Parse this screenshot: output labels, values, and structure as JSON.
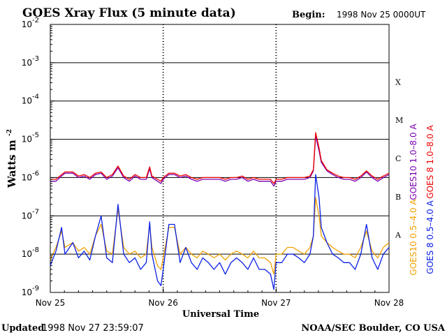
{
  "chart_data": {
    "type": "line",
    "title": "GOES Xray Flux (5 minute data)",
    "begin_label": "Begin:",
    "begin_value": "1998 Nov 25 0000UT",
    "ylabel": "Watts m",
    "ylabel_sup": "-2",
    "xlabel": "Universal Time",
    "y_scale": "log",
    "ylim": [
      1e-09,
      0.01
    ],
    "y_ticks": [
      {
        "base": "10",
        "exp": "-2",
        "value": 0.01
      },
      {
        "base": "10",
        "exp": "-3",
        "value": 0.001
      },
      {
        "base": "10",
        "exp": "-4",
        "value": 0.0001
      },
      {
        "base": "10",
        "exp": "-5",
        "value": 1e-05
      },
      {
        "base": "10",
        "exp": "-6",
        "value": 1e-06
      },
      {
        "base": "10",
        "exp": "-7",
        "value": 1e-07
      },
      {
        "base": "10",
        "exp": "-8",
        "value": 1e-08
      },
      {
        "base": "10",
        "exp": "-9",
        "value": 1e-09
      }
    ],
    "x_unit": "days since 1998 Nov 25 00:00 UT",
    "xlim": [
      0,
      3
    ],
    "x_ticks": [
      {
        "label": "Nov 25",
        "value": 0
      },
      {
        "label": "Nov 26",
        "value": 1
      },
      {
        "label": "Nov 27",
        "value": 2
      },
      {
        "label": "Nov 28",
        "value": 3
      }
    ],
    "flare_classes": [
      {
        "label": "X",
        "value": 0.000316
      },
      {
        "label": "M",
        "value": 3.16e-05
      },
      {
        "label": "C",
        "value": 3.16e-06
      },
      {
        "label": "B",
        "value": 3.16e-07
      },
      {
        "label": "A",
        "value": 3.16e-08
      }
    ],
    "grid": "horizontal at each decade",
    "legend_placement": "right, rotated",
    "series": [
      {
        "name": "GOES10 1.0–8.0 A",
        "color": "#7a00b0",
        "x": [
          0,
          0.05,
          0.1,
          0.13,
          0.2,
          0.25,
          0.3,
          0.35,
          0.4,
          0.45,
          0.5,
          0.55,
          0.6,
          0.65,
          0.7,
          0.75,
          0.8,
          0.85,
          0.88,
          0.9,
          0.95,
          0.98,
          1.0,
          1.05,
          1.1,
          1.15,
          1.2,
          1.25,
          1.3,
          1.35,
          1.4,
          1.45,
          1.5,
          1.55,
          1.6,
          1.65,
          1.7,
          1.75,
          1.8,
          1.85,
          1.9,
          1.95,
          1.98,
          2.0,
          2.05,
          2.1,
          2.15,
          2.2,
          2.25,
          2.3,
          2.33,
          2.35,
          2.38,
          2.4,
          2.45,
          2.5,
          2.55,
          2.6,
          2.65,
          2.7,
          2.75,
          2.8,
          2.85,
          2.9,
          2.95,
          3.0
        ],
        "y": [
          8e-07,
          8e-07,
          1.1e-06,
          1.3e-06,
          1.3e-06,
          1e-06,
          1.1e-06,
          9e-07,
          1.2e-06,
          1.3e-06,
          9e-07,
          1.1e-06,
          1.8e-06,
          1e-06,
          8e-07,
          1.1e-06,
          9e-07,
          9e-07,
          1.7e-06,
          1e-06,
          8e-07,
          7e-07,
          9e-07,
          1.2e-06,
          1.2e-06,
          1e-06,
          1.1e-06,
          9e-07,
          8e-07,
          9e-07,
          9e-07,
          9e-07,
          9e-07,
          8e-07,
          9e-07,
          9e-07,
          1e-06,
          8e-07,
          9e-07,
          8e-07,
          8e-07,
          8e-07,
          6e-07,
          8e-07,
          8e-07,
          9e-07,
          9e-07,
          9e-07,
          9e-07,
          1e-06,
          1.5e-06,
          1.2e-05,
          5e-06,
          2.5e-06,
          1.5e-06,
          1.2e-06,
          1e-06,
          9e-07,
          9e-07,
          8e-07,
          1e-06,
          1.4e-06,
          1e-06,
          8e-07,
          1e-06,
          1.2e-06
        ]
      },
      {
        "name": "GOES 8 1.0–8.0 A",
        "color": "#ee0000",
        "x": [
          0,
          0.05,
          0.1,
          0.13,
          0.2,
          0.25,
          0.3,
          0.35,
          0.4,
          0.45,
          0.5,
          0.55,
          0.6,
          0.65,
          0.7,
          0.75,
          0.8,
          0.85,
          0.88,
          0.9,
          0.95,
          0.98,
          1.0,
          1.05,
          1.1,
          1.15,
          1.2,
          1.25,
          1.3,
          1.35,
          1.4,
          1.45,
          1.5,
          1.55,
          1.6,
          1.65,
          1.7,
          1.75,
          1.8,
          1.85,
          1.9,
          1.95,
          1.98,
          2.0,
          2.05,
          2.1,
          2.15,
          2.2,
          2.25,
          2.3,
          2.33,
          2.35,
          2.38,
          2.4,
          2.45,
          2.5,
          2.55,
          2.6,
          2.65,
          2.7,
          2.75,
          2.8,
          2.85,
          2.9,
          2.95,
          3.0
        ],
        "y": [
          9e-07,
          9e-07,
          1.2e-06,
          1.4e-06,
          1.4e-06,
          1.1e-06,
          1.2e-06,
          1e-06,
          1.3e-06,
          1.4e-06,
          1e-06,
          1.2e-06,
          2e-06,
          1.1e-06,
          9e-07,
          1.2e-06,
          1e-06,
          1e-06,
          1.9e-06,
          1.1e-06,
          9e-07,
          8e-07,
          1e-06,
          1.3e-06,
          1.3e-06,
          1.1e-06,
          1.2e-06,
          1e-06,
          9e-07,
          1e-06,
          1e-06,
          1e-06,
          1e-06,
          9e-07,
          1e-06,
          1e-06,
          1.1e-06,
          9e-07,
          1e-06,
          9e-07,
          9e-07,
          9e-07,
          7e-07,
          9e-07,
          9e-07,
          1e-06,
          1e-06,
          1e-06,
          1e-06,
          1.1e-06,
          1.6e-06,
          1.5e-05,
          6e-06,
          2.8e-06,
          1.6e-06,
          1.3e-06,
          1.1e-06,
          1e-06,
          1e-06,
          9e-07,
          1.1e-06,
          1.5e-06,
          1.1e-06,
          9e-07,
          1.1e-06,
          1.3e-06
        ]
      },
      {
        "name": "GOES10 0.5–4.0 A",
        "color": "#f0a000",
        "x": [
          0,
          0.05,
          0.1,
          0.13,
          0.2,
          0.25,
          0.3,
          0.35,
          0.4,
          0.45,
          0.5,
          0.55,
          0.6,
          0.65,
          0.7,
          0.75,
          0.8,
          0.85,
          0.88,
          0.9,
          0.95,
          0.98,
          1.0,
          1.05,
          1.1,
          1.15,
          1.2,
          1.25,
          1.3,
          1.35,
          1.4,
          1.45,
          1.5,
          1.55,
          1.6,
          1.65,
          1.7,
          1.75,
          1.8,
          1.85,
          1.9,
          1.95,
          1.98,
          2.0,
          2.05,
          2.1,
          2.15,
          2.2,
          2.25,
          2.3,
          2.33,
          2.35,
          2.38,
          2.4,
          2.45,
          2.5,
          2.55,
          2.6,
          2.65,
          2.7,
          2.75,
          2.8,
          2.85,
          2.9,
          2.95,
          3.0
        ],
        "y": [
          7e-09,
          1.5e-08,
          4e-08,
          1.5e-08,
          2e-08,
          1.2e-08,
          1.5e-08,
          1e-08,
          3e-08,
          6e-08,
          1.2e-08,
          1e-08,
          1.5e-07,
          1.5e-08,
          1e-08,
          1.2e-08,
          8e-09,
          1e-08,
          6e-08,
          1.5e-08,
          5e-09,
          4e-09,
          8e-09,
          5e-08,
          5e-08,
          1e-08,
          1.5e-08,
          1e-08,
          8e-09,
          1.2e-08,
          1e-08,
          8e-09,
          1e-08,
          7e-09,
          1e-08,
          1.2e-08,
          1e-08,
          8e-09,
          1.2e-08,
          8e-09,
          8e-09,
          6e-09,
          3e-09,
          1e-08,
          1e-08,
          1.5e-08,
          1.5e-08,
          1.2e-08,
          1e-08,
          1.5e-08,
          3e-08,
          3e-07,
          1e-07,
          3e-08,
          2e-08,
          1.5e-08,
          1.2e-08,
          1e-08,
          1e-08,
          8e-09,
          1.5e-08,
          4e-08,
          1.2e-08,
          8e-09,
          1.5e-08,
          2e-08
        ]
      },
      {
        "name": "GOES 8 0.5–4.0 A",
        "color": "#0a20e6",
        "x": [
          0,
          0.05,
          0.1,
          0.13,
          0.2,
          0.25,
          0.3,
          0.35,
          0.4,
          0.45,
          0.5,
          0.55,
          0.6,
          0.65,
          0.7,
          0.75,
          0.8,
          0.85,
          0.88,
          0.9,
          0.95,
          0.98,
          1.0,
          1.05,
          1.1,
          1.15,
          1.2,
          1.25,
          1.3,
          1.35,
          1.4,
          1.45,
          1.5,
          1.55,
          1.6,
          1.65,
          1.7,
          1.75,
          1.8,
          1.85,
          1.9,
          1.95,
          1.98,
          2.0,
          2.05,
          2.1,
          2.15,
          2.2,
          2.25,
          2.3,
          2.33,
          2.35,
          2.38,
          2.4,
          2.45,
          2.5,
          2.55,
          2.6,
          2.65,
          2.7,
          2.75,
          2.8,
          2.85,
          2.9,
          2.95,
          3.0
        ],
        "y": [
          5e-09,
          1.2e-08,
          5e-08,
          1e-08,
          2e-08,
          8e-09,
          1.2e-08,
          7e-09,
          3e-08,
          1e-07,
          8e-09,
          6e-09,
          2e-07,
          1e-08,
          6e-09,
          8e-09,
          4e-09,
          6e-09,
          7e-08,
          1e-08,
          2e-09,
          1.5e-09,
          4e-09,
          6e-08,
          6e-08,
          6e-09,
          1.5e-08,
          6e-09,
          4e-09,
          8e-09,
          6e-09,
          4e-09,
          6e-09,
          3e-09,
          6e-09,
          8e-09,
          6e-09,
          4e-09,
          8e-09,
          4e-09,
          4e-09,
          3e-09,
          1.2e-09,
          6e-09,
          6e-09,
          1e-08,
          1e-08,
          8e-09,
          6e-09,
          1e-08,
          3e-08,
          1.2e-06,
          3e-07,
          5e-08,
          2e-08,
          1e-08,
          8e-09,
          6e-09,
          6e-09,
          4e-09,
          1e-08,
          6e-08,
          8e-09,
          4e-09,
          1e-08,
          1.5e-08
        ]
      }
    ]
  },
  "footer": {
    "updated_label": "Updated",
    "updated_value": "1998 Nov 27 23:59:07",
    "source": "NOAA/SEC Boulder, CO USA"
  }
}
